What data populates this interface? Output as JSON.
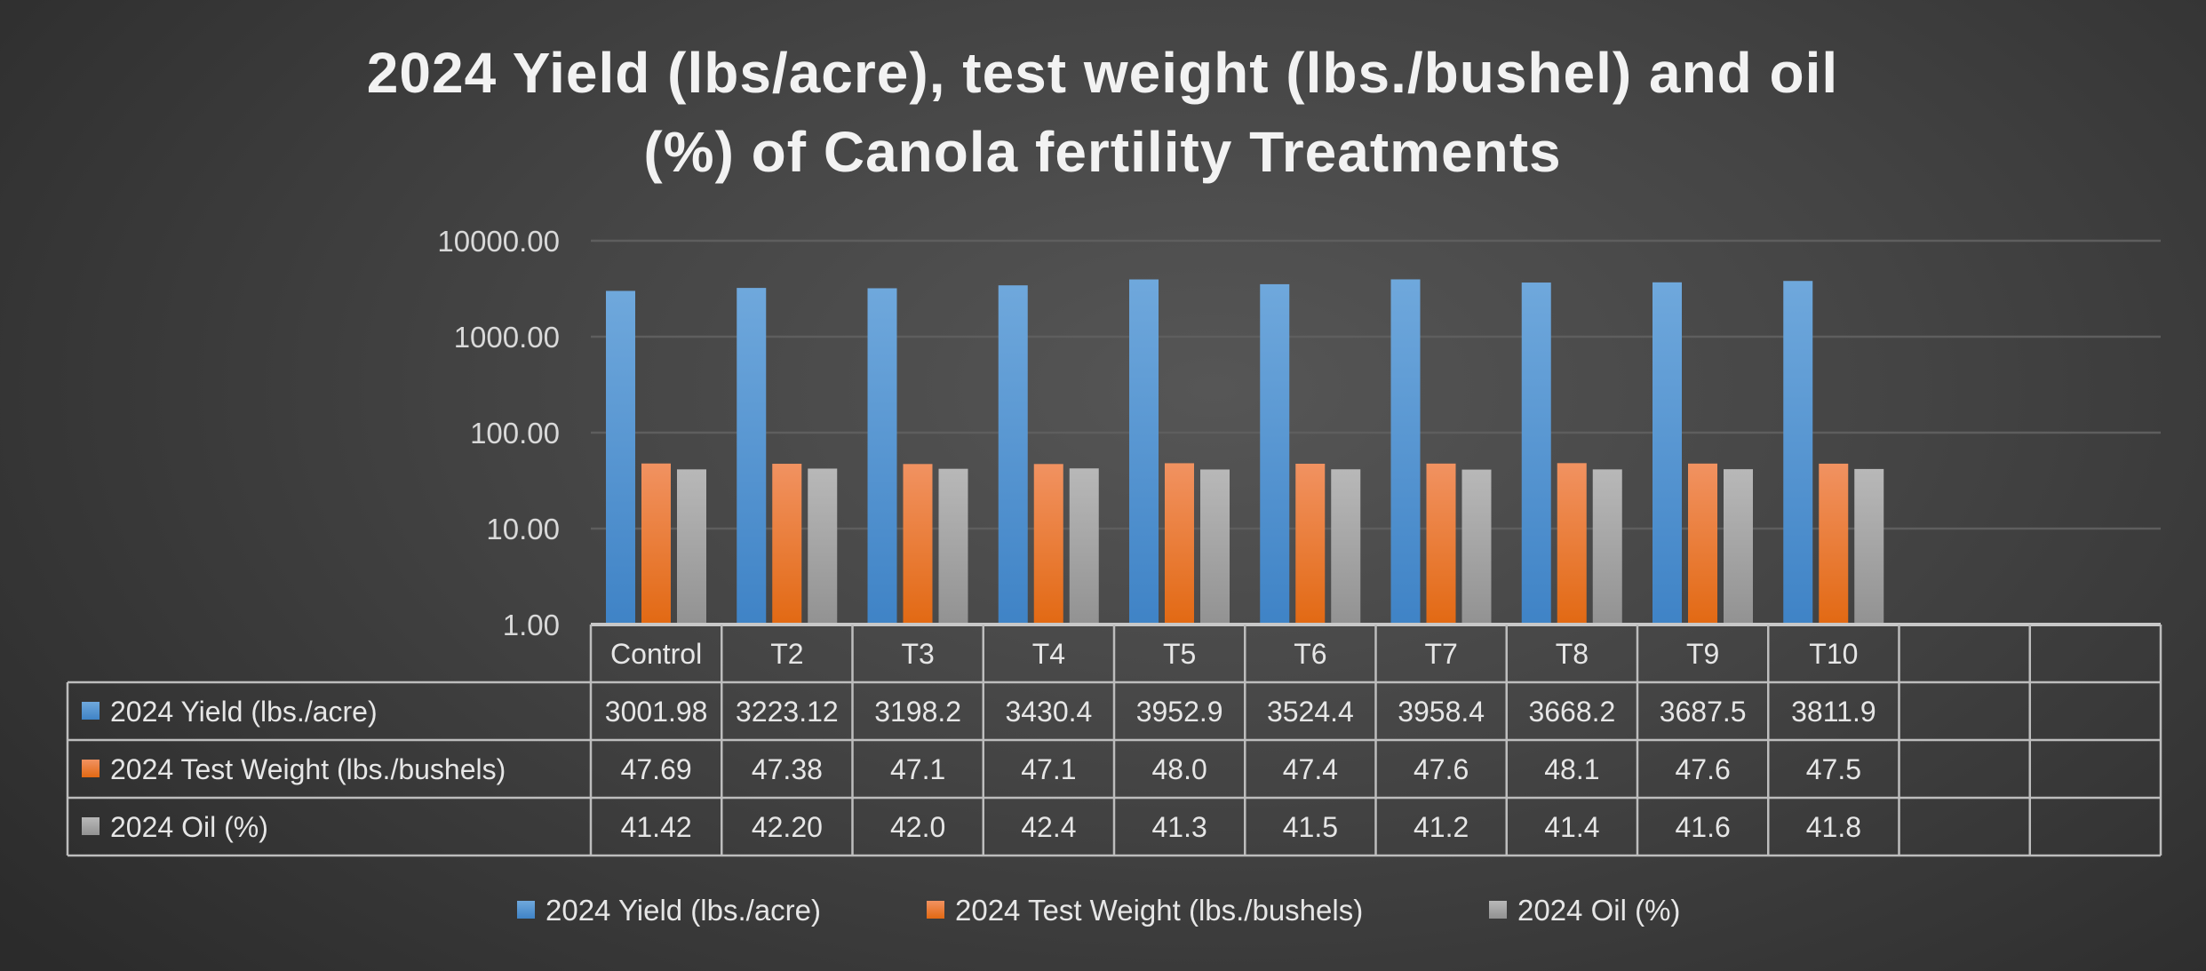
{
  "chart_data": {
    "type": "bar",
    "title": "2024 Yield (lbs/acre), test weight (lbs./bushel) and oil (%) of Canola fertility Treatments",
    "title_lines": [
      "2024 Yield (lbs/acre), test weight (lbs./bushel) and oil",
      "(%) of Canola fertility Treatments"
    ],
    "xlabel": "",
    "ylabel": "",
    "yscale": "log",
    "ylim": [
      1,
      10000
    ],
    "yticks": [
      "1.00",
      "10.00",
      "100.00",
      "1000.00",
      "10000.00"
    ],
    "grid": true,
    "legend_position": "bottom",
    "data_table": true,
    "empty_table_columns": 2,
    "categories": [
      "Control",
      "T2",
      "T3",
      "T4",
      "T5",
      "T6",
      "T7",
      "T8",
      "T9",
      "T10"
    ],
    "series": [
      {
        "name": "2024 Yield (lbs./acre)",
        "color": "#5b9bd5",
        "values": [
          3001.98,
          3223.12,
          3198.2,
          3430.4,
          3952.9,
          3524.4,
          3958.4,
          3668.2,
          3687.5,
          3811.9
        ],
        "labels": [
          "3001.98",
          "3223.12",
          "3198.2",
          "3430.4",
          "3952.9",
          "3524.4",
          "3958.4",
          "3668.2",
          "3687.5",
          "3811.9"
        ]
      },
      {
        "name": "2024 Test Weight (lbs./bushels)",
        "color": "#ed7d31",
        "values": [
          47.69,
          47.38,
          47.1,
          47.1,
          48.0,
          47.4,
          47.6,
          48.1,
          47.6,
          47.5
        ],
        "labels": [
          "47.69",
          "47.38",
          "47.1",
          "47.1",
          "48.0",
          "47.4",
          "47.6",
          "48.1",
          "47.6",
          "47.5"
        ]
      },
      {
        "name": "2024 Oil (%)",
        "color": "#a5a5a5",
        "values": [
          41.42,
          42.2,
          42.0,
          42.4,
          41.3,
          41.5,
          41.2,
          41.4,
          41.6,
          41.8
        ],
        "labels": [
          "41.42",
          "42.20",
          "42.0",
          "42.4",
          "41.3",
          "41.5",
          "41.2",
          "41.4",
          "41.6",
          "41.8"
        ]
      }
    ]
  }
}
